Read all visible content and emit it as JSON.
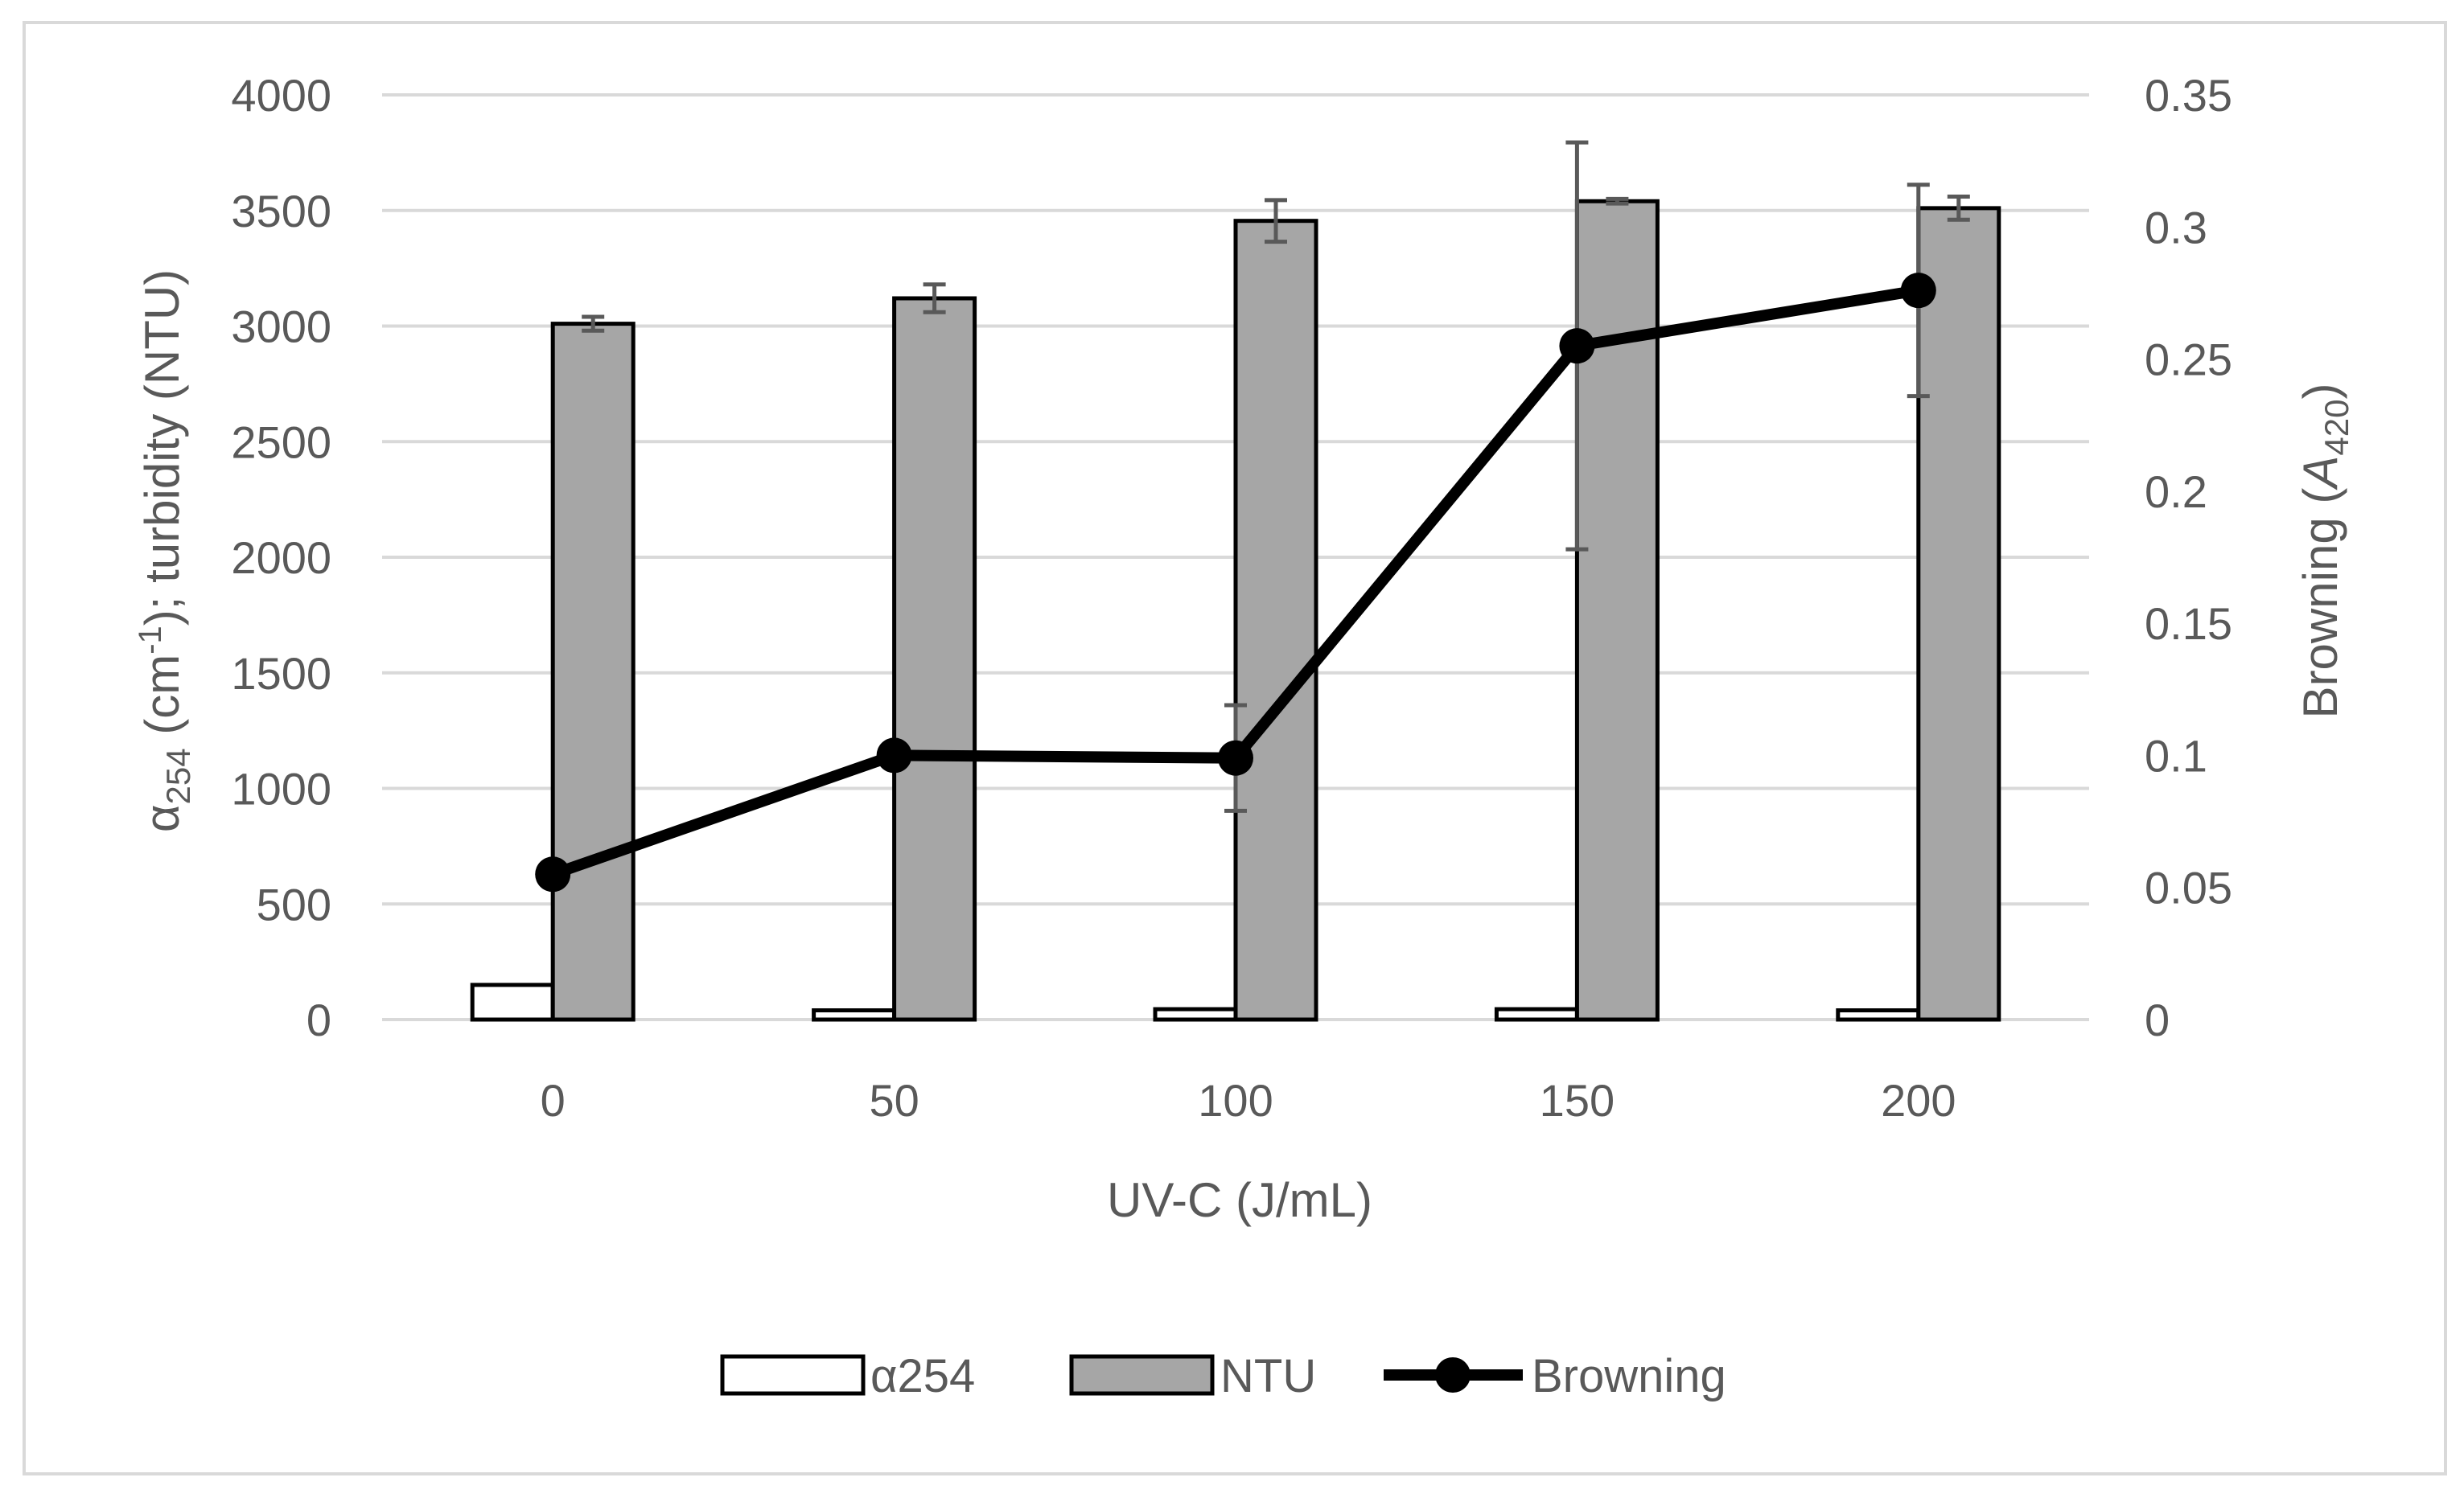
{
  "chart_data": {
    "type": "bar",
    "title": "",
    "xlabel": "UV-C (J/mL)",
    "ylabel_left": {
      "symbol": "α",
      "subscript": "254",
      "unit_prefix": "(cm",
      "unit_sup": "-1",
      "rest": "); turbidity (NTU)"
    },
    "ylabel_right": {
      "prefix": "Browning (",
      "italic": "A",
      "subscript": "420",
      "suffix": ")"
    },
    "categories": [
      "0",
      "50",
      "100",
      "150",
      "200"
    ],
    "ylim_left": [
      0,
      4000
    ],
    "yticks_left": [
      "0",
      "500",
      "1000",
      "1500",
      "2000",
      "2500",
      "3000",
      "3500",
      "4000"
    ],
    "ylim_right": [
      0,
      0.35
    ],
    "yticks_right": [
      "0",
      "0.05",
      "0.1",
      "0.15",
      "0.2",
      "0.25",
      "0.3",
      "0.35"
    ],
    "grid": true,
    "legend_position": "bottom",
    "series": [
      {
        "name": "α254",
        "kind": "bar",
        "axis": "left",
        "fill": "#ffffff",
        "values": [
          150,
          40,
          45,
          45,
          40
        ],
        "errors": [
          0,
          0,
          0,
          0,
          0
        ]
      },
      {
        "name": "NTU",
        "kind": "bar",
        "axis": "left",
        "fill": "#a6a6a6",
        "values": [
          3010,
          3120,
          3455,
          3540,
          3510
        ],
        "errors": [
          30,
          60,
          90,
          10,
          50
        ]
      },
      {
        "name": "Browning",
        "kind": "line",
        "axis": "right",
        "color": "#000000",
        "values": [
          0.055,
          0.1,
          0.099,
          0.255,
          0.276
        ],
        "errors": [
          0,
          0,
          0.02,
          0.077,
          0.04
        ]
      }
    ]
  }
}
